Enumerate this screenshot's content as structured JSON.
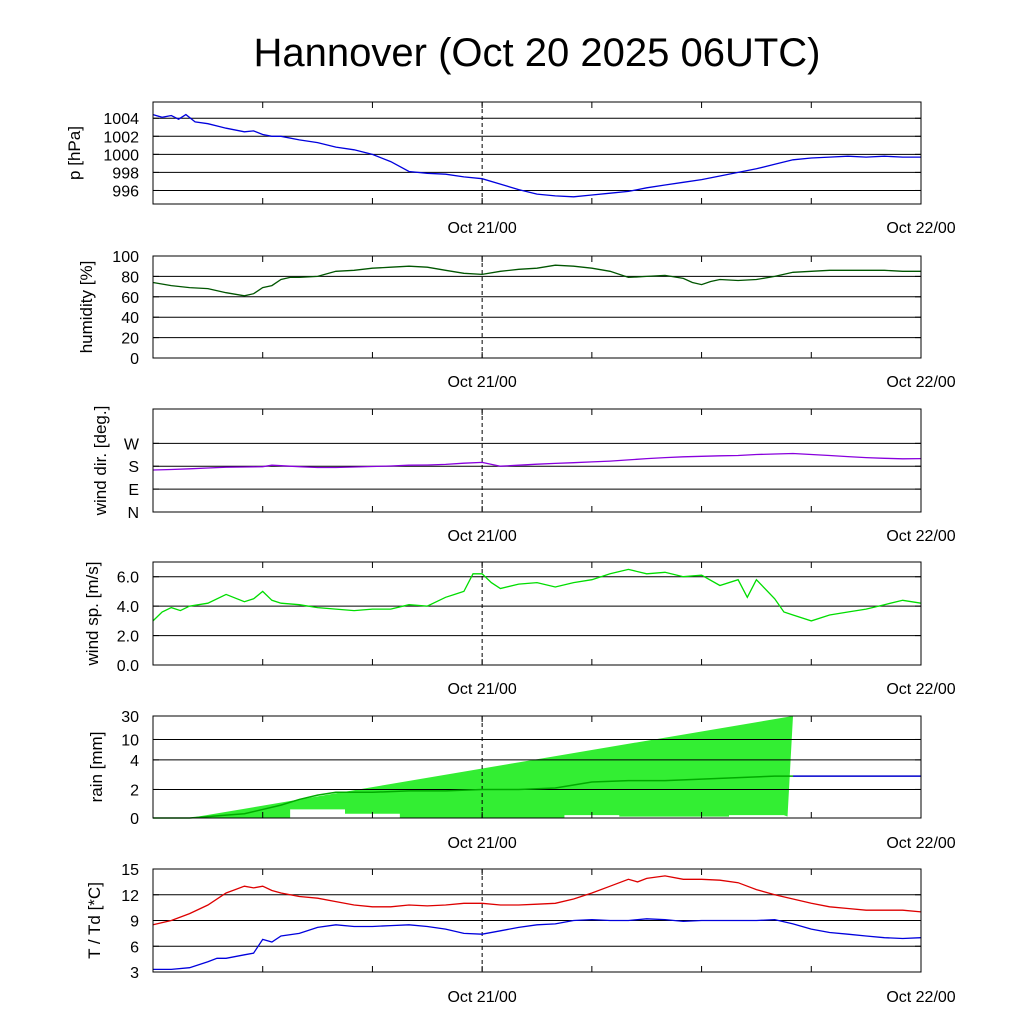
{
  "title": "Hannover (Oct 20 2025 06UTC)",
  "chart_data": [
    {
      "type": "line",
      "ylabel": "p [hPa]",
      "ylim": [
        994.5,
        1005.8
      ],
      "yticks": [
        1004,
        1002,
        1000,
        998,
        996
      ],
      "xlim": [
        0,
        42
      ],
      "date_labels": [
        "Oct 21/00",
        "Oct 22/00"
      ],
      "date_positions": [
        18,
        42
      ],
      "color": "#0000dd",
      "series": [
        {
          "x": [
            0,
            0.5,
            1,
            1.4,
            1.8,
            2.3,
            3,
            4,
            5,
            5.5,
            6,
            6.5,
            7,
            8,
            9,
            10,
            11,
            12,
            13,
            14,
            15,
            16,
            17,
            18,
            19,
            20,
            21,
            22,
            23,
            24,
            25,
            26,
            27,
            28,
            29,
            30,
            31,
            32,
            33,
            34,
            35,
            36,
            37,
            38,
            39,
            40,
            41,
            42
          ],
          "y": [
            1004.4,
            1004.1,
            1004.3,
            1003.9,
            1004.4,
            1003.6,
            1003.4,
            1002.9,
            1002.5,
            1002.6,
            1002.2,
            1002.0,
            1002.0,
            1001.6,
            1001.3,
            1000.8,
            1000.5,
            1000.0,
            999.2,
            998.1,
            997.9,
            997.8,
            997.5,
            997.3,
            996.7,
            996.1,
            995.6,
            995.4,
            995.3,
            995.5,
            995.7,
            995.9,
            996.3,
            996.6,
            996.9,
            997.2,
            997.6,
            998.0,
            998.4,
            998.9,
            999.4,
            999.6,
            999.7,
            999.8,
            999.7,
            999.8,
            999.7,
            999.7
          ]
        }
      ]
    },
    {
      "type": "line",
      "ylabel": "humidity [%]",
      "ylim": [
        0,
        100
      ],
      "yticks": [
        100,
        80,
        60,
        40,
        20,
        0
      ],
      "xlim": [
        0,
        42
      ],
      "date_labels": [
        "Oct 21/00",
        "Oct 22/00"
      ],
      "date_positions": [
        18,
        42
      ],
      "color": "#005500",
      "series": [
        {
          "x": [
            0,
            1,
            2,
            3,
            4,
            5,
            5.5,
            6,
            6.5,
            7,
            7.5,
            8,
            9,
            10,
            11,
            12,
            13,
            14,
            15,
            16,
            17,
            18,
            19,
            20,
            21,
            22,
            23,
            24,
            25,
            26,
            27,
            28,
            29,
            29.5,
            30,
            30.5,
            31,
            32,
            33,
            34,
            35,
            36,
            37,
            38,
            39,
            40,
            41,
            42
          ],
          "y": [
            74,
            71,
            69,
            68,
            64,
            61,
            63,
            69,
            71,
            77,
            79,
            79,
            80,
            85,
            86,
            88,
            89,
            90,
            89,
            86,
            83,
            82,
            85,
            87,
            88,
            91,
            90,
            88,
            85,
            79,
            80,
            81,
            78,
            74,
            72,
            75,
            77,
            76,
            77,
            80,
            84,
            85,
            86,
            86,
            86,
            86,
            85,
            85
          ]
        }
      ]
    },
    {
      "type": "line",
      "ylabel": "wind dir. [deg.]",
      "ylim": [
        0,
        405
      ],
      "yticks_labels": [
        "W",
        "S",
        "E",
        "N"
      ],
      "ytick_values": [
        270,
        180,
        90,
        0
      ],
      "xlim": [
        0,
        42
      ],
      "date_labels": [
        "Oct 21/00",
        "Oct 22/00"
      ],
      "date_positions": [
        18,
        42
      ],
      "color": "#8800dd",
      "series": [
        {
          "x": [
            0,
            1,
            2,
            3,
            4,
            5,
            6,
            6.5,
            7,
            8,
            9,
            10,
            11,
            12,
            13,
            14,
            15,
            16,
            17,
            18,
            19,
            20,
            21,
            22,
            23,
            24,
            25,
            26,
            27,
            28,
            29,
            30,
            31,
            32,
            33,
            34,
            35,
            36,
            37,
            38,
            39,
            40,
            41,
            42
          ],
          "y": [
            165,
            167,
            170,
            173,
            176,
            177,
            178,
            184,
            182,
            178,
            175,
            175,
            177,
            179,
            181,
            184,
            185,
            187,
            192,
            195,
            180,
            184,
            188,
            191,
            194,
            197,
            200,
            205,
            210,
            214,
            217,
            219,
            221,
            222,
            226,
            228,
            230,
            226,
            222,
            218,
            214,
            211,
            209,
            210
          ]
        }
      ]
    },
    {
      "type": "line",
      "ylabel": "wind sp. [m/s]",
      "ylim": [
        0,
        7
      ],
      "yticks": [
        6.0,
        4.0,
        2.0,
        0.0
      ],
      "ytick_text": [
        "6.0",
        "4.0",
        "2.0",
        "0.0"
      ],
      "xlim": [
        0,
        42
      ],
      "date_labels": [
        "Oct 21/00",
        "Oct 22/00"
      ],
      "date_positions": [
        18,
        42
      ],
      "color": "#00dd00",
      "series": [
        {
          "x": [
            0,
            0.5,
            1,
            1.5,
            2,
            3,
            4,
            5,
            5.5,
            6,
            6.5,
            7,
            8,
            9,
            10,
            11,
            12,
            13,
            14,
            15,
            16,
            16.5,
            17,
            17.5,
            18,
            18.5,
            19,
            20,
            21,
            22,
            23,
            24,
            25,
            26,
            27,
            28,
            29,
            30,
            31,
            32,
            32.5,
            33,
            34,
            34.5,
            35,
            36,
            37,
            38,
            39,
            40,
            41,
            42
          ],
          "y": [
            3.0,
            3.6,
            3.9,
            3.7,
            4.0,
            4.2,
            4.8,
            4.3,
            4.5,
            5.0,
            4.4,
            4.2,
            4.1,
            3.9,
            3.8,
            3.7,
            3.8,
            3.8,
            4.1,
            4.0,
            4.6,
            4.8,
            5.0,
            6.2,
            6.2,
            5.6,
            5.2,
            5.5,
            5.6,
            5.3,
            5.6,
            5.8,
            6.2,
            6.5,
            6.2,
            6.3,
            6.0,
            6.1,
            5.4,
            5.8,
            4.6,
            5.8,
            4.5,
            3.6,
            3.4,
            3.0,
            3.4,
            3.6,
            3.8,
            4.1,
            4.4,
            4.2
          ]
        }
      ]
    },
    {
      "type": "area",
      "ylabel": "rain [mm]",
      "yticks": [
        30,
        10,
        4,
        2,
        0
      ],
      "ylim_label": [
        0,
        30
      ],
      "xlim": [
        0,
        42
      ],
      "date_labels": [
        "Oct 21/00",
        "Oct 22/00"
      ],
      "date_positions": [
        18,
        42
      ],
      "fill_color": "#33ee33",
      "line_color": "#00aa00",
      "line_color_after": "#0000cc",
      "accumulated": {
        "x": [
          0,
          2,
          3,
          4,
          5,
          6,
          7,
          8,
          9,
          10,
          12,
          14,
          16,
          18,
          20,
          22,
          24,
          26,
          28,
          30,
          32,
          34,
          35,
          36,
          42
        ],
        "y": [
          0,
          0,
          0.1,
          0.2,
          0.3,
          0.6,
          0.9,
          1.3,
          1.6,
          1.8,
          1.8,
          1.9,
          1.9,
          2.0,
          2.0,
          2.1,
          2.5,
          2.6,
          2.6,
          2.7,
          2.8,
          2.9,
          2.9,
          2.9,
          2.9
        ]
      },
      "envelope_upper": {
        "x": [
          2,
          35
        ],
        "y": [
          0,
          30
        ]
      },
      "envelope_lower": {
        "x": [
          2,
          7.5,
          7.5,
          10.5,
          10.5,
          13.5,
          13.5,
          22.5,
          22.5,
          25.5,
          25.5,
          31.5,
          31.5,
          34.5
        ],
        "y": [
          0,
          0,
          0.6,
          0.6,
          0.3,
          0.3,
          0,
          0,
          0.2,
          0.2,
          0.1,
          0.1,
          0.2,
          0.2
        ]
      }
    },
    {
      "type": "line",
      "ylabel": "T / Td [*C]",
      "ylim": [
        3,
        15
      ],
      "yticks": [
        15,
        12,
        9,
        6,
        3
      ],
      "xlim": [
        0,
        42
      ],
      "date_labels": [
        "Oct 21/00",
        "Oct 22/00"
      ],
      "date_positions": [
        18,
        42
      ],
      "series": [
        {
          "color": "#dd0000",
          "x": [
            0,
            1,
            2,
            3,
            4,
            5,
            5.5,
            6,
            6.5,
            7,
            8,
            9,
            10,
            11,
            12,
            13,
            14,
            15,
            16,
            17,
            18,
            19,
            20,
            21,
            22,
            23,
            24,
            25,
            26,
            26.5,
            27,
            28,
            29,
            30,
            31,
            32,
            33,
            34,
            35,
            36,
            37,
            38,
            39,
            40,
            41,
            42
          ],
          "y": [
            8.5,
            9.0,
            9.8,
            10.8,
            12.2,
            13.0,
            12.8,
            13.0,
            12.5,
            12.2,
            11.8,
            11.6,
            11.2,
            10.8,
            10.6,
            10.6,
            10.8,
            10.7,
            10.8,
            11.0,
            11.0,
            10.8,
            10.8,
            10.9,
            11.0,
            11.5,
            12.2,
            13.0,
            13.8,
            13.5,
            13.9,
            14.2,
            13.8,
            13.8,
            13.7,
            13.4,
            12.6,
            12.0,
            11.5,
            11.0,
            10.6,
            10.4,
            10.2,
            10.2,
            10.2,
            10.0
          ]
        },
        {
          "color": "#0000dd",
          "x": [
            0,
            1,
            2,
            3,
            3.5,
            4,
            5,
            5.5,
            6,
            6.5,
            7,
            8,
            9,
            10,
            11,
            12,
            13,
            14,
            15,
            16,
            17,
            18,
            19,
            20,
            21,
            22,
            23,
            24,
            25,
            26,
            27,
            28,
            29,
            30,
            31,
            32,
            33,
            34,
            35,
            36,
            37,
            38,
            39,
            40,
            41,
            42
          ],
          "y": [
            3.3,
            3.3,
            3.5,
            4.2,
            4.6,
            4.6,
            5.0,
            5.2,
            6.8,
            6.5,
            7.2,
            7.5,
            8.2,
            8.5,
            8.3,
            8.3,
            8.4,
            8.5,
            8.3,
            8.0,
            7.5,
            7.4,
            7.8,
            8.2,
            8.5,
            8.6,
            9.0,
            9.1,
            9.0,
            9.0,
            9.2,
            9.1,
            8.9,
            9.0,
            9.0,
            9.0,
            9.0,
            9.1,
            8.6,
            8.0,
            7.6,
            7.4,
            7.2,
            7.0,
            6.9,
            7.0
          ]
        }
      ]
    }
  ]
}
